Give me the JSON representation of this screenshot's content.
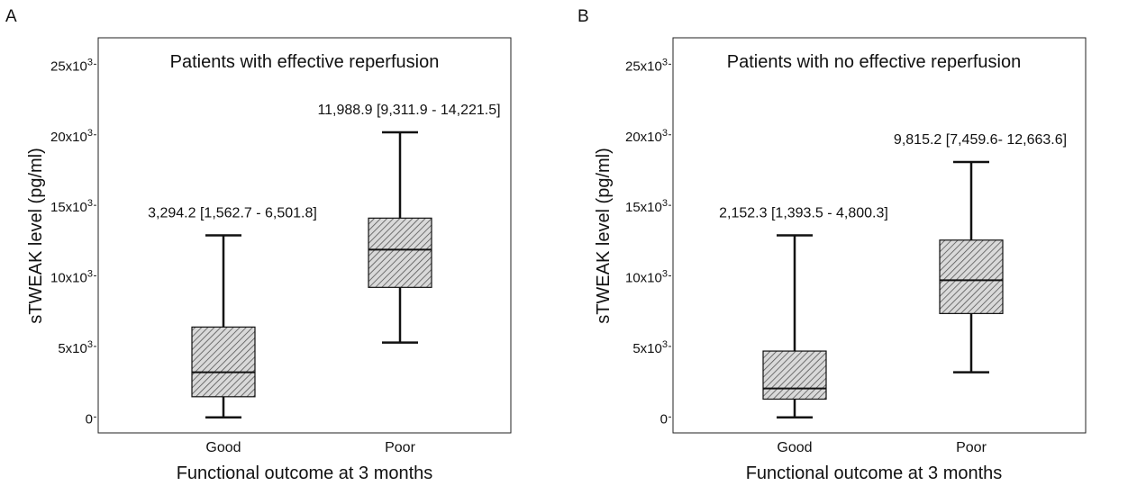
{
  "chart_data": [
    {
      "type": "box",
      "panel_label": "A",
      "title": "Patients with effective reperfusion",
      "xlabel": "Functional outcome at 3 months",
      "ylabel": "sTWEAK level (pg/ml)",
      "ylim": [
        -1000,
        27000
      ],
      "yticks": [
        {
          "value": 0,
          "base": "0",
          "exp": ""
        },
        {
          "value": 5000,
          "base": "5x10",
          "exp": "3"
        },
        {
          "value": 10000,
          "base": "10x10",
          "exp": "3"
        },
        {
          "value": 15000,
          "base": "15x10",
          "exp": "3"
        },
        {
          "value": 20000,
          "base": "20x10",
          "exp": "3"
        },
        {
          "value": 25000,
          "base": "25x10",
          "exp": "3"
        }
      ],
      "categories": [
        "Good",
        "Poor"
      ],
      "boxes": [
        {
          "category": "Good",
          "whisker_low": 100,
          "q1": 1562.7,
          "median": 3294.2,
          "q3": 6501.8,
          "whisker_high": 13000,
          "label": "3,294.2 [1,562.7 - 6,501.8]"
        },
        {
          "category": "Poor",
          "whisker_low": 5400,
          "q1": 9311.9,
          "median": 11988.9,
          "q3": 14221.5,
          "whisker_high": 20300,
          "label": "11,988.9 [9,311.9 - 14,221.5]"
        }
      ],
      "grid": false,
      "pattern_color": "#555555"
    },
    {
      "type": "box",
      "panel_label": "B",
      "title": "Patients with no effective reperfusion",
      "xlabel": "Functional outcome at 3 months",
      "ylabel": "sTWEAK level (pg/ml)",
      "ylim": [
        -1000,
        27000
      ],
      "yticks": [
        {
          "value": 0,
          "base": "0",
          "exp": ""
        },
        {
          "value": 5000,
          "base": "5x10",
          "exp": "3"
        },
        {
          "value": 10000,
          "base": "10x10",
          "exp": "3"
        },
        {
          "value": 15000,
          "base": "15x10",
          "exp": "3"
        },
        {
          "value": 20000,
          "base": "20x10",
          "exp": "3"
        },
        {
          "value": 25000,
          "base": "25x10",
          "exp": "3"
        }
      ],
      "categories": [
        "Good",
        "Poor"
      ],
      "boxes": [
        {
          "category": "Good",
          "whisker_low": 100,
          "q1": 1393.5,
          "median": 2152.3,
          "q3": 4800.3,
          "whisker_high": 13000,
          "label": "2,152.3 [1,393.5 - 4,800.3]"
        },
        {
          "category": "Poor",
          "whisker_low": 3300,
          "q1": 7459.6,
          "median": 9815.2,
          "q3": 12663.6,
          "whisker_high": 18200,
          "label": "9,815.2 [7,459.6- 12,663.6]"
        }
      ],
      "grid": false,
      "pattern_color": "#555555"
    }
  ]
}
